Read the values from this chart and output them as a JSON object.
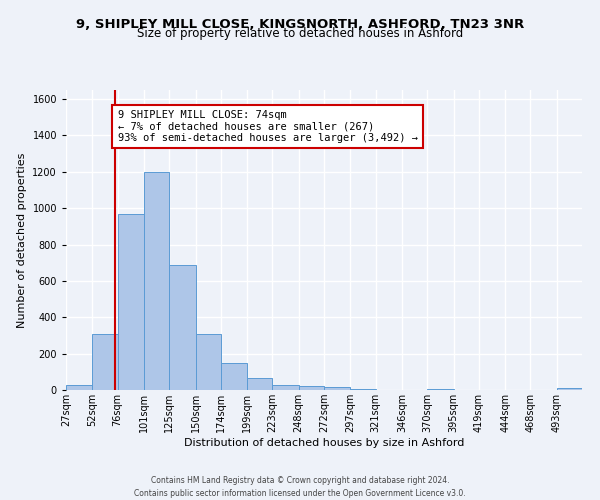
{
  "title1": "9, SHIPLEY MILL CLOSE, KINGSNORTH, ASHFORD, TN23 3NR",
  "title2": "Size of property relative to detached houses in Ashford",
  "xlabel": "Distribution of detached houses by size in Ashford",
  "ylabel": "Number of detached properties",
  "footer1": "Contains HM Land Registry data © Crown copyright and database right 2024.",
  "footer2": "Contains public sector information licensed under the Open Government Licence v3.0.",
  "annotation_line1": "9 SHIPLEY MILL CLOSE: 74sqm",
  "annotation_line2": "← 7% of detached houses are smaller (267)",
  "annotation_line3": "93% of semi-detached houses are larger (3,492) →",
  "bar_color": "#aec6e8",
  "bar_edge_color": "#5b9bd5",
  "red_line_color": "#cc0000",
  "property_size": 74,
  "bin_edges": [
    27,
    52,
    76,
    101,
    125,
    150,
    174,
    199,
    223,
    248,
    272,
    297,
    321,
    346,
    370,
    395,
    419,
    444,
    468,
    493,
    517
  ],
  "bar_heights": [
    30,
    310,
    970,
    1200,
    690,
    310,
    150,
    65,
    30,
    20,
    15,
    5,
    0,
    0,
    5,
    0,
    0,
    0,
    0,
    10
  ],
  "ylim": [
    0,
    1650
  ],
  "yticks": [
    0,
    200,
    400,
    600,
    800,
    1000,
    1200,
    1400,
    1600
  ],
  "background_color": "#eef2f9",
  "grid_color": "#ffffff",
  "title_fontsize": 9.5,
  "subtitle_fontsize": 8.5,
  "axis_label_fontsize": 8,
  "tick_fontsize": 7,
  "footer_fontsize": 5.5,
  "annot_fontsize": 7.5
}
